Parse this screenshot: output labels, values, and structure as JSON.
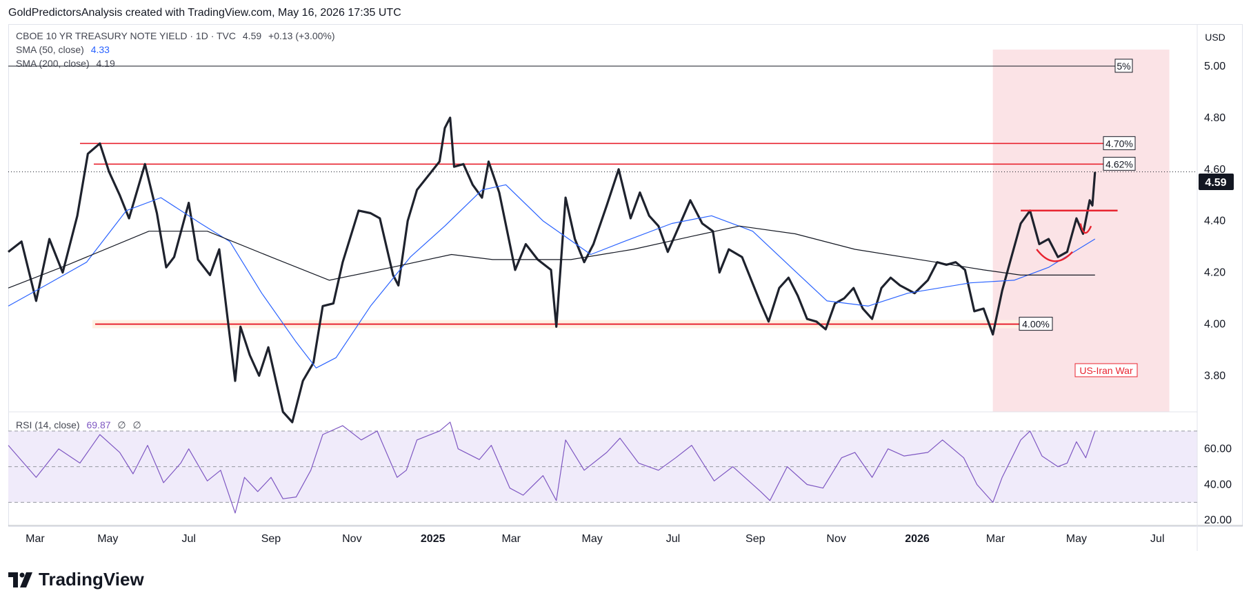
{
  "header": {
    "caption": "GoldPredictorsAnalysis created with TradingView.com, May 16, 2026 17:35 UTC",
    "symbol": "CBOE 10 YR TREASURY NOTE YIELD · 1D · TVC",
    "price": "4.59",
    "change": "+0.13 (+3.00%)",
    "sma50_label": "SMA (50, close)",
    "sma50_value": "4.33",
    "sma200_label": "SMA (200, close)",
    "sma200_value": "4.19",
    "rsi_label": "RSI (14, close)",
    "rsi_value": "69.87",
    "rsi_extra1": "∅",
    "rsi_extra2": "∅",
    "currency": "USD"
  },
  "brand": {
    "name": "TradingView"
  },
  "colors": {
    "price_line": "#1e222d",
    "sma50": "#2962ff",
    "sma200": "#131722",
    "level": "#e8232f",
    "highlight": "#fbe3e6",
    "rsi": "#7e57c2",
    "rsi_band": "#f0ebfa",
    "annotation_red": "#e8232f"
  },
  "annotations": {
    "level_5": "5%",
    "level_470": "4.70%",
    "level_462": "4.62%",
    "level_400": "4.00%",
    "event": "US-Iran War"
  },
  "chart_data": {
    "type": "line",
    "title": "CBOE 10 YR TREASURY NOTE YIELD",
    "y_axis_ticks": [
      "5.00",
      "4.80",
      "4.60",
      "4.40",
      "4.20",
      "4.00",
      "3.80"
    ],
    "last_price_label": "4.59",
    "ylim": [
      3.66,
      5.16
    ],
    "rsi_ticks": [
      "60.00",
      "40.00",
      "20.00"
    ],
    "rsi_ylim": [
      17,
      80
    ],
    "x_tick_labels": [
      "Mar",
      "May",
      "Jul",
      "Sep",
      "Nov",
      "2025",
      "Mar",
      "May",
      "Jul",
      "Sep",
      "Nov",
      "2026",
      "Mar",
      "May",
      "Jul"
    ],
    "x_tick_dates": [
      "2024-03-01",
      "2024-05-01",
      "2024-07-01",
      "2024-09-01",
      "2024-11-01",
      "2025-01-01",
      "2025-03-01",
      "2025-05-01",
      "2025-07-01",
      "2025-09-01",
      "2025-11-01",
      "2026-01-01",
      "2026-03-01",
      "2026-05-01",
      "2026-07-01"
    ],
    "x_range": [
      "2024-02-16",
      "2026-07-31"
    ],
    "horizontal_levels": [
      5.0,
      4.7,
      4.62,
      4.0
    ],
    "highlight_range": [
      "2026-02-27",
      "2026-07-10"
    ],
    "series": [
      {
        "name": "CBOE 10 YR TREASURY NOTE YIELD",
        "points": [
          [
            "2024-02-16",
            4.28
          ],
          [
            "2024-02-26",
            4.32
          ],
          [
            "2024-03-08",
            4.09
          ],
          [
            "2024-03-18",
            4.33
          ],
          [
            "2024-03-28",
            4.2
          ],
          [
            "2024-04-08",
            4.42
          ],
          [
            "2024-04-16",
            4.66
          ],
          [
            "2024-04-25",
            4.7
          ],
          [
            "2024-05-02",
            4.59
          ],
          [
            "2024-05-10",
            4.5
          ],
          [
            "2024-05-17",
            4.41
          ],
          [
            "2024-05-29",
            4.62
          ],
          [
            "2024-06-07",
            4.43
          ],
          [
            "2024-06-14",
            4.22
          ],
          [
            "2024-06-20",
            4.26
          ],
          [
            "2024-07-01",
            4.47
          ],
          [
            "2024-07-08",
            4.25
          ],
          [
            "2024-07-17",
            4.19
          ],
          [
            "2024-07-24",
            4.29
          ],
          [
            "2024-08-05",
            3.78
          ],
          [
            "2024-08-09",
            3.99
          ],
          [
            "2024-08-16",
            3.88
          ],
          [
            "2024-08-23",
            3.8
          ],
          [
            "2024-08-30",
            3.91
          ],
          [
            "2024-09-10",
            3.66
          ],
          [
            "2024-09-17",
            3.62
          ],
          [
            "2024-09-25",
            3.78
          ],
          [
            "2024-10-03",
            3.85
          ],
          [
            "2024-10-10",
            4.07
          ],
          [
            "2024-10-18",
            4.08
          ],
          [
            "2024-10-25",
            4.24
          ],
          [
            "2024-11-06",
            4.44
          ],
          [
            "2024-11-15",
            4.43
          ],
          [
            "2024-11-22",
            4.41
          ],
          [
            "2024-12-02",
            4.19
          ],
          [
            "2024-12-06",
            4.15
          ],
          [
            "2024-12-13",
            4.4
          ],
          [
            "2024-12-20",
            4.52
          ],
          [
            "2025-01-06",
            4.63
          ],
          [
            "2025-01-10",
            4.76
          ],
          [
            "2025-01-14",
            4.8
          ],
          [
            "2025-01-17",
            4.61
          ],
          [
            "2025-01-24",
            4.62
          ],
          [
            "2025-01-31",
            4.54
          ],
          [
            "2025-02-07",
            4.49
          ],
          [
            "2025-02-12",
            4.63
          ],
          [
            "2025-02-20",
            4.51
          ],
          [
            "2025-03-04",
            4.21
          ],
          [
            "2025-03-12",
            4.31
          ],
          [
            "2025-03-21",
            4.25
          ],
          [
            "2025-03-31",
            4.21
          ],
          [
            "2025-04-04",
            3.99
          ],
          [
            "2025-04-11",
            4.49
          ],
          [
            "2025-04-18",
            4.33
          ],
          [
            "2025-04-25",
            4.24
          ],
          [
            "2025-05-02",
            4.31
          ],
          [
            "2025-05-12",
            4.46
          ],
          [
            "2025-05-21",
            4.6
          ],
          [
            "2025-05-30",
            4.41
          ],
          [
            "2025-06-06",
            4.51
          ],
          [
            "2025-06-13",
            4.42
          ],
          [
            "2025-06-20",
            4.38
          ],
          [
            "2025-06-27",
            4.28
          ],
          [
            "2025-07-03",
            4.35
          ],
          [
            "2025-07-14",
            4.48
          ],
          [
            "2025-07-23",
            4.39
          ],
          [
            "2025-07-31",
            4.36
          ],
          [
            "2025-08-05",
            4.2
          ],
          [
            "2025-08-12",
            4.29
          ],
          [
            "2025-08-22",
            4.26
          ],
          [
            "2025-09-05",
            4.08
          ],
          [
            "2025-09-11",
            4.01
          ],
          [
            "2025-09-19",
            4.14
          ],
          [
            "2025-09-26",
            4.18
          ],
          [
            "2025-10-03",
            4.11
          ],
          [
            "2025-10-10",
            4.02
          ],
          [
            "2025-10-17",
            4.01
          ],
          [
            "2025-10-24",
            3.98
          ],
          [
            "2025-10-31",
            4.08
          ],
          [
            "2025-11-07",
            4.1
          ],
          [
            "2025-11-14",
            4.14
          ],
          [
            "2025-11-21",
            4.06
          ],
          [
            "2025-11-28",
            4.02
          ],
          [
            "2025-12-05",
            4.14
          ],
          [
            "2025-12-12",
            4.18
          ],
          [
            "2025-12-19",
            4.15
          ],
          [
            "2025-12-30",
            4.12
          ],
          [
            "2026-01-09",
            4.17
          ],
          [
            "2026-01-16",
            4.24
          ],
          [
            "2026-01-23",
            4.23
          ],
          [
            "2026-01-30",
            4.24
          ],
          [
            "2026-02-06",
            4.21
          ],
          [
            "2026-02-13",
            4.05
          ],
          [
            "2026-02-20",
            4.06
          ],
          [
            "2026-02-27",
            3.96
          ],
          [
            "2026-03-06",
            4.13
          ],
          [
            "2026-03-13",
            4.26
          ],
          [
            "2026-03-20",
            4.39
          ],
          [
            "2026-03-27",
            4.44
          ],
          [
            "2026-04-03",
            4.31
          ],
          [
            "2026-04-10",
            4.33
          ],
          [
            "2026-04-17",
            4.26
          ],
          [
            "2026-04-24",
            4.28
          ],
          [
            "2026-05-01",
            4.41
          ],
          [
            "2026-05-06",
            4.35
          ],
          [
            "2026-05-11",
            4.48
          ],
          [
            "2026-05-13",
            4.46
          ],
          [
            "2026-05-15",
            4.59
          ]
        ]
      },
      {
        "name": "SMA (50, close)",
        "points": [
          [
            "2024-02-16",
            4.07
          ],
          [
            "2024-03-15",
            4.15
          ],
          [
            "2024-04-15",
            4.24
          ],
          [
            "2024-05-15",
            4.44
          ],
          [
            "2024-06-10",
            4.49
          ],
          [
            "2024-07-10",
            4.39
          ],
          [
            "2024-08-01",
            4.32
          ],
          [
            "2024-08-25",
            4.12
          ],
          [
            "2024-09-20",
            3.93
          ],
          [
            "2024-10-05",
            3.83
          ],
          [
            "2024-10-20",
            3.87
          ],
          [
            "2024-11-15",
            4.07
          ],
          [
            "2024-12-15",
            4.26
          ],
          [
            "2025-01-10",
            4.38
          ],
          [
            "2025-02-07",
            4.52
          ],
          [
            "2025-02-25",
            4.54
          ],
          [
            "2025-03-25",
            4.4
          ],
          [
            "2025-04-30",
            4.27
          ],
          [
            "2025-05-25",
            4.32
          ],
          [
            "2025-06-30",
            4.39
          ],
          [
            "2025-07-30",
            4.42
          ],
          [
            "2025-08-30",
            4.36
          ],
          [
            "2025-09-30",
            4.21
          ],
          [
            "2025-10-25",
            4.09
          ],
          [
            "2025-11-25",
            4.07
          ],
          [
            "2025-12-25",
            4.12
          ],
          [
            "2026-02-10",
            4.16
          ],
          [
            "2026-03-15",
            4.17
          ],
          [
            "2026-04-10",
            4.22
          ],
          [
            "2026-05-15",
            4.33
          ]
        ]
      },
      {
        "name": "SMA (200, close)",
        "points": [
          [
            "2024-02-16",
            4.14
          ],
          [
            "2024-04-01",
            4.23
          ],
          [
            "2024-06-01",
            4.36
          ],
          [
            "2024-07-15",
            4.36
          ],
          [
            "2024-09-01",
            4.26
          ],
          [
            "2024-10-15",
            4.17
          ],
          [
            "2024-12-01",
            4.22
          ],
          [
            "2025-01-15",
            4.27
          ],
          [
            "2025-02-15",
            4.25
          ],
          [
            "2025-04-15",
            4.25
          ],
          [
            "2025-06-01",
            4.29
          ],
          [
            "2025-07-15",
            4.34
          ],
          [
            "2025-08-20",
            4.38
          ],
          [
            "2025-10-01",
            4.35
          ],
          [
            "2025-11-15",
            4.29
          ],
          [
            "2026-01-15",
            4.24
          ],
          [
            "2026-02-20",
            4.21
          ],
          [
            "2026-03-20",
            4.19
          ],
          [
            "2026-05-15",
            4.19
          ]
        ]
      },
      {
        "name": "RSI (14, close)",
        "points": [
          [
            "2024-02-16",
            62
          ],
          [
            "2024-03-08",
            44
          ],
          [
            "2024-03-25",
            60
          ],
          [
            "2024-04-10",
            52
          ],
          [
            "2024-04-25",
            68
          ],
          [
            "2024-05-10",
            58
          ],
          [
            "2024-05-20",
            46
          ],
          [
            "2024-05-31",
            62
          ],
          [
            "2024-06-12",
            41
          ],
          [
            "2024-06-25",
            52
          ],
          [
            "2024-07-01",
            60
          ],
          [
            "2024-07-15",
            42
          ],
          [
            "2024-07-25",
            48
          ],
          [
            "2024-08-05",
            24
          ],
          [
            "2024-08-12",
            44
          ],
          [
            "2024-08-22",
            36
          ],
          [
            "2024-09-01",
            44
          ],
          [
            "2024-09-10",
            32
          ],
          [
            "2024-09-20",
            33
          ],
          [
            "2024-10-01",
            48
          ],
          [
            "2024-10-10",
            68
          ],
          [
            "2024-10-25",
            73
          ],
          [
            "2024-11-08",
            65
          ],
          [
            "2024-11-20",
            70
          ],
          [
            "2024-12-05",
            44
          ],
          [
            "2024-12-12",
            48
          ],
          [
            "2024-12-20",
            65
          ],
          [
            "2025-01-06",
            70
          ],
          [
            "2025-01-14",
            75
          ],
          [
            "2025-01-20",
            60
          ],
          [
            "2025-02-05",
            54
          ],
          [
            "2025-02-14",
            62
          ],
          [
            "2025-02-28",
            38
          ],
          [
            "2025-03-10",
            34
          ],
          [
            "2025-03-25",
            45
          ],
          [
            "2025-04-04",
            31
          ],
          [
            "2025-04-11",
            65
          ],
          [
            "2025-04-25",
            48
          ],
          [
            "2025-05-12",
            58
          ],
          [
            "2025-05-22",
            66
          ],
          [
            "2025-06-05",
            52
          ],
          [
            "2025-06-20",
            48
          ],
          [
            "2025-07-03",
            55
          ],
          [
            "2025-07-15",
            62
          ],
          [
            "2025-08-01",
            42
          ],
          [
            "2025-08-15",
            50
          ],
          [
            "2025-09-05",
            36
          ],
          [
            "2025-09-12",
            31
          ],
          [
            "2025-09-25",
            50
          ],
          [
            "2025-10-10",
            40
          ],
          [
            "2025-10-22",
            38
          ],
          [
            "2025-11-05",
            55
          ],
          [
            "2025-11-15",
            58
          ],
          [
            "2025-11-28",
            44
          ],
          [
            "2025-12-10",
            60
          ],
          [
            "2025-12-22",
            56
          ],
          [
            "2026-01-09",
            58
          ],
          [
            "2026-01-20",
            65
          ],
          [
            "2026-02-05",
            55
          ],
          [
            "2026-02-15",
            40
          ],
          [
            "2026-02-27",
            30
          ],
          [
            "2026-03-06",
            44
          ],
          [
            "2026-03-20",
            65
          ],
          [
            "2026-03-27",
            70
          ],
          [
            "2026-04-05",
            56
          ],
          [
            "2026-04-17",
            50
          ],
          [
            "2026-04-24",
            52
          ],
          [
            "2026-05-01",
            64
          ],
          [
            "2026-05-08",
            55
          ],
          [
            "2026-05-15",
            70
          ]
        ]
      }
    ],
    "pattern_lines": {
      "neckline": [
        [
          "2026-03-20",
          4.44
        ],
        [
          "2026-06-01",
          4.44
        ]
      ],
      "left_cup": [
        [
          "2026-04-01",
          4.29
        ],
        [
          "2026-04-14",
          4.24
        ],
        [
          "2026-04-28",
          4.28
        ]
      ],
      "right_cup": [
        [
          "2026-05-04",
          4.39
        ],
        [
          "2026-05-07",
          4.36
        ],
        [
          "2026-05-12",
          4.38
        ]
      ]
    }
  }
}
